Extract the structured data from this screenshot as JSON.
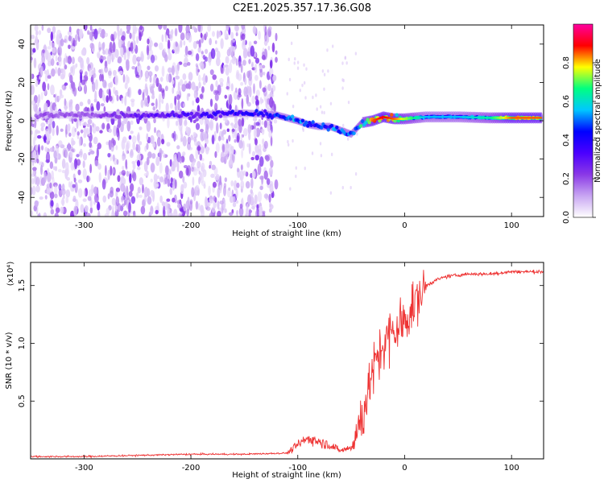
{
  "page": {
    "title": "C2E1.2025.357.17.36.G08"
  },
  "chart_data": [
    {
      "type": "heatmap",
      "xlabel": "Height of straight line (km)",
      "ylabel": "Frequency (Hz)",
      "xlim": [
        -350,
        130
      ],
      "ylim": [
        -50,
        50
      ],
      "x_ticks": [
        -300,
        -200,
        -100,
        0,
        100
      ],
      "y_ticks": [
        -40,
        -20,
        0,
        20,
        40
      ],
      "grid": false,
      "colorbar": {
        "label": "Normalized spectral amplitude",
        "range": [
          0,
          1
        ],
        "ticks": [
          0.0,
          0.2,
          0.4,
          0.6,
          0.8
        ],
        "colormap": [
          "#ffffff",
          "#c8a6f2",
          "#8a38e6",
          "#4b00ff",
          "#0000ff",
          "#00c8ff",
          "#00ff80",
          "#ffff00",
          "#ff0000",
          "#ff00a0"
        ]
      },
      "ridge": {
        "name": "",
        "x": [
          -350,
          -300,
          -250,
          -200,
          -150,
          -120,
          -100,
          -90,
          -80,
          -70,
          -60,
          -50,
          -40,
          -30,
          -20,
          -10,
          0,
          20,
          50,
          80,
          100,
          130
        ],
        "y": [
          3,
          3,
          3,
          3,
          4,
          3,
          0,
          -2,
          -3,
          -3,
          -5,
          -7,
          -1,
          0,
          2,
          1,
          1,
          2,
          2,
          1.5,
          1.5,
          1.5
        ],
        "amplitude": [
          0.2,
          0.2,
          0.3,
          0.35,
          0.4,
          0.45,
          0.55,
          0.5,
          0.45,
          0.5,
          0.55,
          0.5,
          0.65,
          0.8,
          0.85,
          0.8,
          0.7,
          0.5,
          0.5,
          0.6,
          0.8,
          0.8
        ]
      },
      "noise_region": {
        "x_range": [
          -350,
          -120
        ],
        "y_range": [
          -50,
          50
        ]
      }
    },
    {
      "type": "line",
      "xlabel": "Height of straight line (km)",
      "ylabel": "SNR (10 * v/v)",
      "y_multiplier": "(x10⁴)",
      "xlim": [
        -350,
        130
      ],
      "ylim": [
        0,
        1.7
      ],
      "x_ticks": [
        -300,
        -200,
        -100,
        0,
        100
      ],
      "y_ticks": [
        0.5,
        1.0,
        1.5
      ],
      "y_tick_labels": [
        "0.5",
        "1.0",
        "1.5"
      ],
      "grid": false,
      "color": "#ee3333",
      "series": [
        {
          "x": [
            -350,
            -300,
            -250,
            -200,
            -150,
            -110,
            -100,
            -90,
            -80,
            -70,
            -60,
            -50,
            -40,
            -30,
            -20,
            -10,
            0,
            10,
            20,
            30,
            40,
            60,
            80,
            100,
            130
          ],
          "y": [
            0.02,
            0.02,
            0.03,
            0.04,
            0.04,
            0.05,
            0.12,
            0.18,
            0.15,
            0.12,
            0.07,
            0.1,
            0.35,
            0.75,
            1.0,
            1.1,
            1.2,
            1.35,
            1.5,
            1.55,
            1.58,
            1.6,
            1.6,
            1.62,
            1.62
          ]
        }
      ]
    }
  ]
}
